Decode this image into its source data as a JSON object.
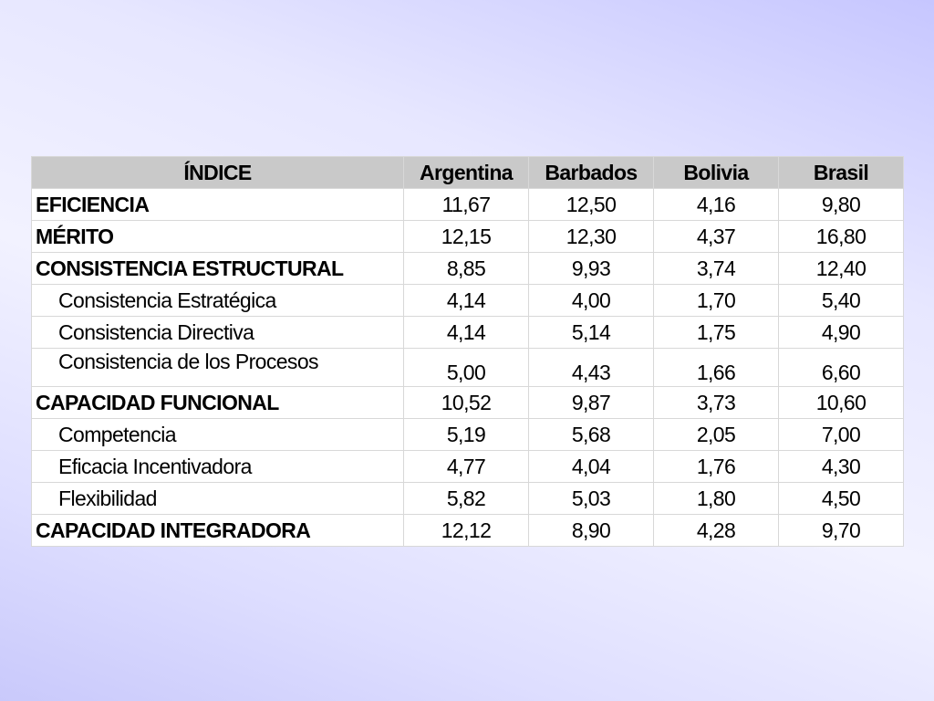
{
  "table": {
    "headers": [
      "ÍNDICE",
      "Argentina",
      "Barbados",
      "Bolivia",
      "Brasil"
    ],
    "rows": [
      {
        "label": "EFICIENCIA",
        "level": "main",
        "values": [
          "11,67",
          "12,50",
          "4,16",
          "9,80"
        ]
      },
      {
        "label": "MÉRITO",
        "level": "main",
        "values": [
          "12,15",
          "12,30",
          "4,37",
          "16,80"
        ]
      },
      {
        "label": "CONSISTENCIA ESTRUCTURAL",
        "level": "main",
        "values": [
          "8,85",
          "9,93",
          "3,74",
          "12,40"
        ]
      },
      {
        "label": "Consistencia Estratégica",
        "level": "sub",
        "values": [
          "4,14",
          "4,00",
          "1,70",
          "5,40"
        ]
      },
      {
        "label": "Consistencia Directiva",
        "level": "sub",
        "values": [
          "4,14",
          "5,14",
          "1,75",
          "4,90"
        ]
      },
      {
        "label": "Consistencia de los Procesos",
        "level": "sub",
        "values": [
          "5,00",
          "4,43",
          "1,66",
          "6,60"
        ]
      },
      {
        "label": "CAPACIDAD FUNCIONAL",
        "level": "main",
        "values": [
          "10,52",
          "9,87",
          "3,73",
          "10,60"
        ]
      },
      {
        "label": "Competencia",
        "level": "sub",
        "values": [
          "5,19",
          "5,68",
          "2,05",
          "7,00"
        ]
      },
      {
        "label": "Eficacia Incentivadora",
        "level": "sub",
        "values": [
          "4,77",
          "4,04",
          "1,76",
          "4,30"
        ]
      },
      {
        "label": "Flexibilidad",
        "level": "sub",
        "values": [
          "5,82",
          "5,03",
          "1,80",
          "4,50"
        ]
      },
      {
        "label": "CAPACIDAD INTEGRADORA",
        "level": "main",
        "values": [
          "12,12",
          "8,90",
          "4,28",
          "9,70"
        ]
      }
    ]
  },
  "colors": {
    "header_bg": "#c9c9c9",
    "cell_bg": "#ffffff",
    "border": "#d8d8d8",
    "background_gradient": [
      "#c6c6ff",
      "#f2f2ff",
      "#c9c9fb"
    ]
  }
}
